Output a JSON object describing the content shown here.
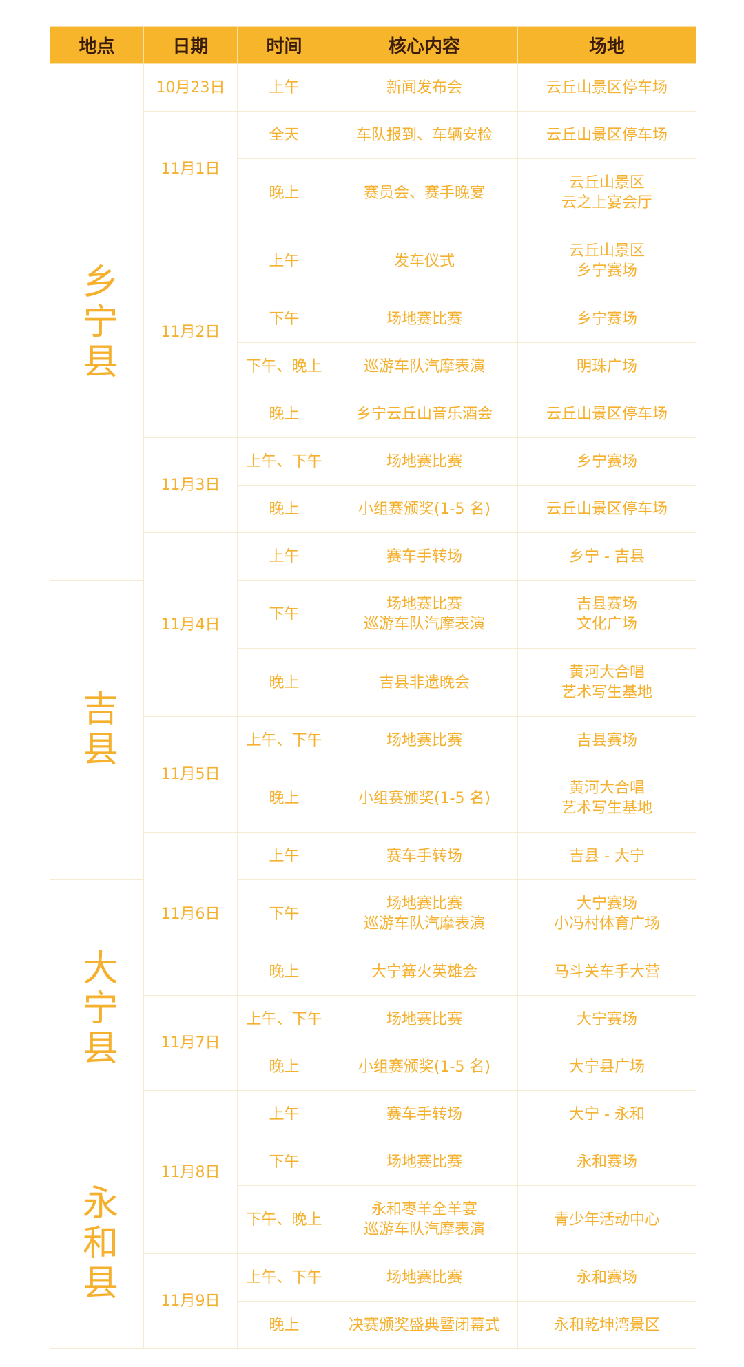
{
  "colors": {
    "header_bg": "#F7B52C",
    "header_text": "#3A1C0C",
    "body_text": "#F5B02E",
    "border": "#F6EAD2"
  },
  "headers": [
    "地点",
    "日期",
    "时间",
    "核心内容",
    "场地"
  ],
  "rows": [
    {
      "location": "乡宁县",
      "date": "10月23日",
      "time": "上午",
      "content": "新闻发布会",
      "venue": "云丘山景区停车场"
    },
    {
      "location": "乡宁县",
      "date": "11月1日",
      "time": "全天",
      "content": "车队报到、车辆安检",
      "venue": "云丘山景区停车场"
    },
    {
      "location": "乡宁县",
      "date": "11月1日",
      "time": "晚上",
      "content": "赛员会、赛手晚宴",
      "venue": "云丘山景区\n云之上宴会厅"
    },
    {
      "location": "乡宁县",
      "date": "11月2日",
      "time": "上午",
      "content": "发车仪式",
      "venue": "云丘山景区\n乡宁赛场"
    },
    {
      "location": "乡宁县",
      "date": "11月2日",
      "time": "下午",
      "content": "场地赛比赛",
      "venue": "乡宁赛场"
    },
    {
      "location": "乡宁县",
      "date": "11月2日",
      "time": "下午、晚上",
      "content": "巡游车队汽摩表演",
      "venue": "明珠广场"
    },
    {
      "location": "乡宁县",
      "date": "11月2日",
      "time": "晚上",
      "content": "乡宁云丘山音乐酒会",
      "venue": "云丘山景区停车场"
    },
    {
      "location": "乡宁县",
      "date": "11月3日",
      "time": "上午、下午",
      "content": "场地赛比赛",
      "venue": "乡宁赛场"
    },
    {
      "location": "乡宁县",
      "date": "11月3日",
      "time": "晚上",
      "content": "小组赛颁奖(1-5 名)",
      "venue": "云丘山景区停车场"
    },
    {
      "location": "乡宁县",
      "date": "11月4日",
      "time": "上午",
      "content": "赛车手转场",
      "venue": "乡宁 - 吉县"
    },
    {
      "location": "吉县",
      "date": "11月4日",
      "time": "下午",
      "content": "场地赛比赛\n巡游车队汽摩表演",
      "venue": "吉县赛场\n文化广场"
    },
    {
      "location": "吉县",
      "date": "11月4日",
      "time": "晚上",
      "content": "吉县非遗晚会",
      "venue": "黄河大合唱\n艺术写生基地"
    },
    {
      "location": "吉县",
      "date": "11月5日",
      "time": "上午、下午",
      "content": "场地赛比赛",
      "venue": "吉县赛场"
    },
    {
      "location": "吉县",
      "date": "11月5日",
      "time": "晚上",
      "content": "小组赛颁奖(1-5 名)",
      "venue": "黄河大合唱\n艺术写生基地"
    },
    {
      "location": "吉县",
      "date": "11月6日",
      "time": "上午",
      "content": "赛车手转场",
      "venue": "吉县 - 大宁"
    },
    {
      "location": "大宁县",
      "date": "11月6日",
      "time": "下午",
      "content": "场地赛比赛\n巡游车队汽摩表演",
      "venue": "大宁赛场\n小冯村体育广场"
    },
    {
      "location": "大宁县",
      "date": "11月6日",
      "time": "晚上",
      "content": "大宁篝火英雄会",
      "venue": "马斗关车手大营"
    },
    {
      "location": "大宁县",
      "date": "11月7日",
      "time": "上午、下午",
      "content": "场地赛比赛",
      "venue": "大宁赛场"
    },
    {
      "location": "大宁县",
      "date": "11月7日",
      "time": "晚上",
      "content": "小组赛颁奖(1-5 名)",
      "venue": "大宁县广场"
    },
    {
      "location": "大宁县",
      "date": "11月8日",
      "time": "上午",
      "content": "赛车手转场",
      "venue": "大宁 - 永和"
    },
    {
      "location": "永和县",
      "date": "11月8日",
      "time": "下午",
      "content": "场地赛比赛",
      "venue": "永和赛场"
    },
    {
      "location": "永和县",
      "date": "11月8日",
      "time": "下午、晚上",
      "content": "永和枣羊全羊宴\n巡游车队汽摩表演",
      "venue": "青少年活动中心"
    },
    {
      "location": "永和县",
      "date": "11月9日",
      "time": "上午、下午",
      "content": "场地赛比赛",
      "venue": "永和赛场"
    },
    {
      "location": "永和县",
      "date": "11月9日",
      "time": "晚上",
      "content": "决赛颁奖盛典暨闭幕式",
      "venue": "永和乾坤湾景区"
    }
  ]
}
